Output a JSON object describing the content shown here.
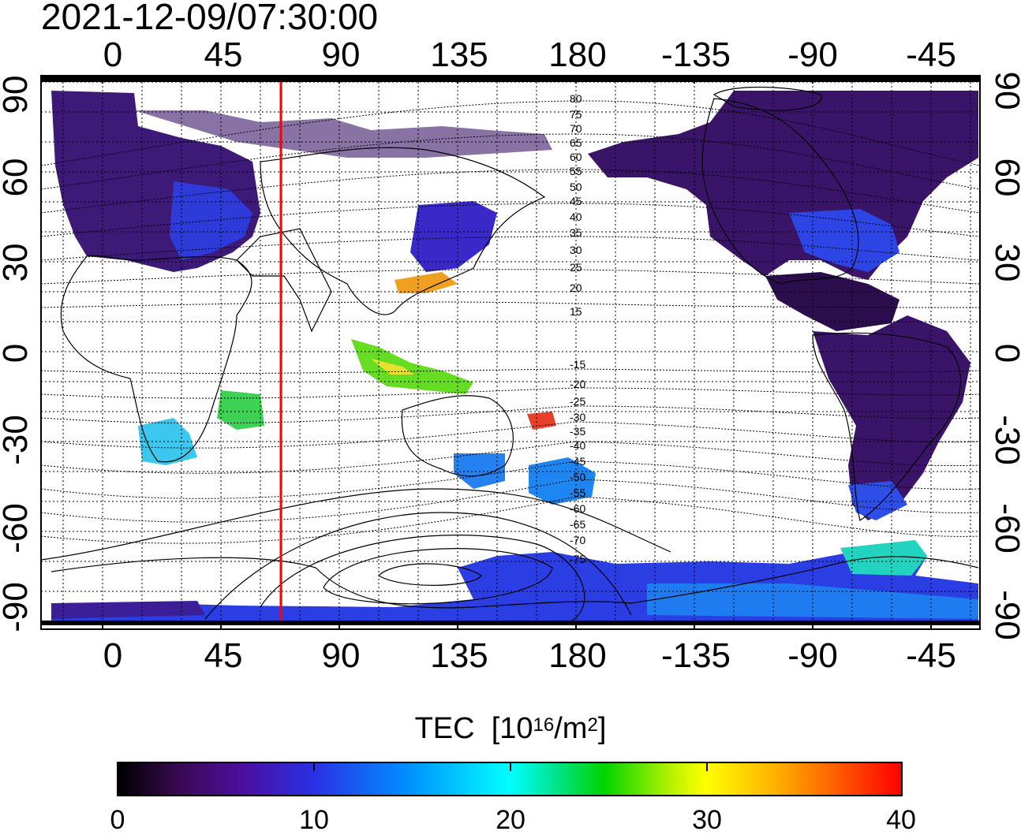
{
  "title": "2021-12-09/07:30:00",
  "colors": {
    "meridian_line": "#ff0000",
    "land_outline": "#000000",
    "frame": "#000000"
  },
  "top_x_ticks": [
    "0",
    "45",
    "90",
    "135",
    "180",
    "-135",
    "-90",
    "-45"
  ],
  "bottom_x_ticks": [
    "0",
    "45",
    "90",
    "135",
    "180",
    "-135",
    "-90",
    "-45"
  ],
  "left_y_ticks": [
    "90",
    "60",
    "30",
    "0",
    "-30",
    "-60",
    "-90"
  ],
  "right_y_ticks": [
    "90",
    "60",
    "30",
    "0",
    "-30",
    "-60",
    "-90"
  ],
  "contour_labels": [
    "80",
    "75",
    "70",
    "65",
    "60",
    "55",
    "50",
    "45",
    "40",
    "35",
    "30",
    "25",
    "20",
    "15",
    "-15",
    "-20",
    "-25",
    "-30",
    "-35",
    "-40",
    "-45",
    "-50",
    "-55",
    "-60",
    "-65",
    "-70",
    "-75"
  ],
  "colorbar": {
    "title": "TEC",
    "unit_prefix": "[10",
    "unit_exp": "16",
    "unit_mid": "/m",
    "unit_exp2": "2",
    "unit_suffix": "]",
    "min": 0,
    "max": 40,
    "tick_labels": [
      "0",
      "10",
      "20",
      "30",
      "40"
    ]
  }
}
